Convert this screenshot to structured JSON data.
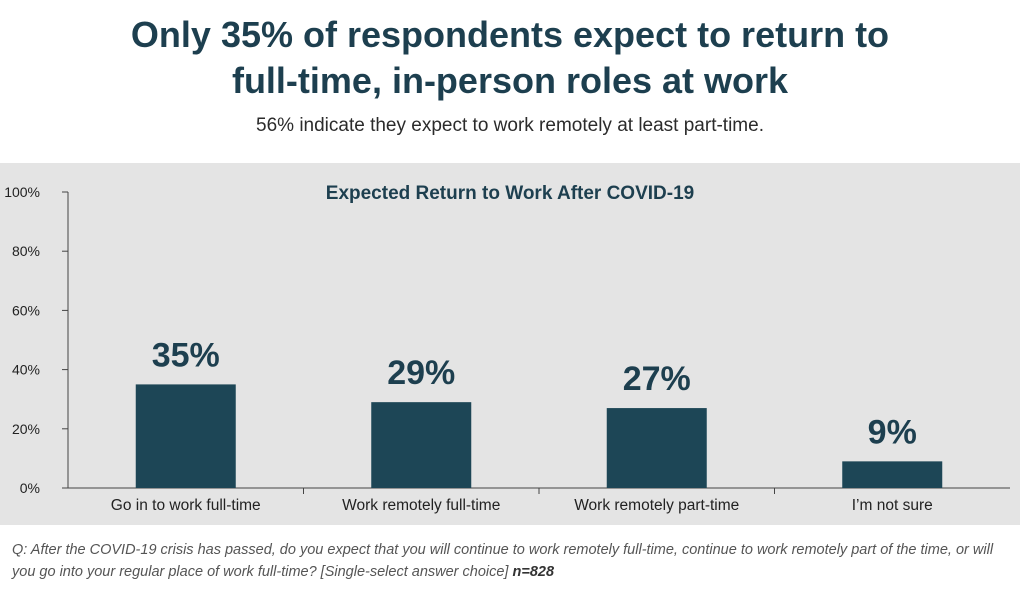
{
  "headline": "Only 35% of respondents expect to return to full-time, in-person roles at work",
  "headline_line1": "Only 35% of respondents expect to return to",
  "headline_line2": "full-time, in-person roles at work",
  "subheadline": "56% indicate they expect to work remotely at least part-time.",
  "colors": {
    "bar": "#1d4656",
    "title": "#1d3f4f",
    "panel": "#e4e4e4"
  },
  "chart_data": {
    "type": "bar",
    "title": "Expected Return to Work After COVID-19",
    "categories": [
      "Go in to work full-time",
      "Work remotely full-time",
      "Work remotely part-time",
      "I’m not sure"
    ],
    "values": [
      35,
      29,
      27,
      9
    ],
    "value_labels": [
      "35%",
      "29%",
      "27%",
      "9%"
    ],
    "ylim": [
      0,
      100
    ],
    "yticks": [
      0,
      20,
      40,
      60,
      80,
      100
    ],
    "ytick_labels": [
      "0%",
      "20%",
      "40%",
      "60%",
      "80%",
      "100%"
    ],
    "xlabel": "",
    "ylabel": "",
    "grid": false,
    "legend": "none"
  },
  "footnote": {
    "question": "Q: After the COVID-19 crisis has passed, do you expect that you will continue to work remotely full-time, continue to work remotely part of the time, or will you go into your regular place of work full-time? [Single-select answer choice]",
    "sample": "n=828"
  }
}
